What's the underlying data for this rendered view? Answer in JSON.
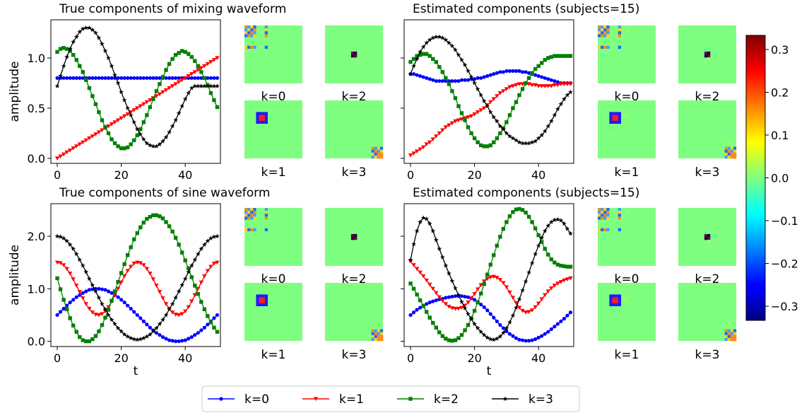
{
  "figure": {
    "legend_placement": "bottom-center",
    "legend": [
      {
        "label": "k=0",
        "color": "#0000ff",
        "marker": "circle"
      },
      {
        "label": "k=1",
        "color": "#ff0000",
        "marker": "triangle-down"
      },
      {
        "label": "k=2",
        "color": "#008000",
        "marker": "square"
      },
      {
        "label": "k=3",
        "color": "#000000",
        "marker": "star"
      }
    ],
    "colorbar": {
      "colormap": "jet",
      "range": [
        -0.333,
        0.333
      ],
      "ticks": [
        0.3,
        0.2,
        0.1,
        0.0,
        -0.1,
        -0.2,
        -0.3
      ],
      "tick_labels": [
        "0.3",
        "0.2",
        "0.1",
        "0.0",
        "−0.1",
        "−0.2",
        "−0.3"
      ]
    },
    "matrix_labels": [
      "k=0",
      "k=2",
      "k=1",
      "k=3"
    ]
  },
  "chart_data": [
    {
      "type": "line",
      "title": "True components of mixing waveform",
      "xlabel": "",
      "ylabel": "amplitude",
      "xlim": [
        -2,
        51
      ],
      "ylim": [
        -0.05,
        1.38
      ],
      "xticks": [
        0,
        20,
        40
      ],
      "xtick_labels": [
        "0",
        "20",
        "40"
      ],
      "yticks": [
        0.0,
        0.5,
        1.0
      ],
      "ytick_labels": [
        "0.0",
        "0.5",
        "1.0"
      ],
      "x_start": 0,
      "x_step": 1,
      "series": [
        {
          "name": "k=0",
          "values": [
            0.8,
            0.8,
            0.8,
            0.8,
            0.8,
            0.8,
            0.8,
            0.8,
            0.8,
            0.8,
            0.8,
            0.8,
            0.8,
            0.8,
            0.8,
            0.8,
            0.8,
            0.8,
            0.8,
            0.8,
            0.8,
            0.8,
            0.8,
            0.8,
            0.8,
            0.8,
            0.8,
            0.8,
            0.8,
            0.8,
            0.8,
            0.8,
            0.8,
            0.8,
            0.8,
            0.8,
            0.8,
            0.8,
            0.8,
            0.8,
            0.8,
            0.8,
            0.8,
            0.8,
            0.8,
            0.8,
            0.8,
            0.8,
            0.8,
            0.8,
            0.8
          ]
        },
        {
          "name": "k=1",
          "values": [
            0.0,
            0.02,
            0.04,
            0.06,
            0.08,
            0.1,
            0.12,
            0.14,
            0.16,
            0.18,
            0.2,
            0.22,
            0.24,
            0.26,
            0.28,
            0.3,
            0.32,
            0.34,
            0.36,
            0.38,
            0.4,
            0.42,
            0.44,
            0.46,
            0.48,
            0.5,
            0.52,
            0.54,
            0.56,
            0.58,
            0.6,
            0.62,
            0.64,
            0.66,
            0.68,
            0.7,
            0.72,
            0.74,
            0.76,
            0.78,
            0.8,
            0.82,
            0.84,
            0.86,
            0.88,
            0.9,
            0.92,
            0.94,
            0.96,
            0.98,
            1.0
          ]
        },
        {
          "name": "k=2",
          "values": [
            1.06,
            1.09,
            1.1,
            1.09,
            1.07,
            1.03,
            0.98,
            0.92,
            0.86,
            0.78,
            0.7,
            0.62,
            0.54,
            0.46,
            0.38,
            0.31,
            0.25,
            0.19,
            0.15,
            0.12,
            0.1,
            0.1,
            0.11,
            0.14,
            0.18,
            0.23,
            0.29,
            0.36,
            0.43,
            0.51,
            0.59,
            0.67,
            0.74,
            0.81,
            0.88,
            0.94,
            0.99,
            1.03,
            1.05,
            1.07,
            1.06,
            1.04,
            1.01,
            0.97,
            0.92,
            0.86,
            0.8,
            0.73,
            0.65,
            0.58,
            0.51
          ]
        },
        {
          "name": "k=3",
          "values": [
            0.72,
            0.82,
            0.92,
            1.01,
            1.09,
            1.16,
            1.21,
            1.26,
            1.29,
            1.3,
            1.3,
            1.28,
            1.25,
            1.2,
            1.14,
            1.07,
            1.0,
            0.92,
            0.83,
            0.75,
            0.66,
            0.58,
            0.5,
            0.43,
            0.36,
            0.29,
            0.24,
            0.19,
            0.15,
            0.13,
            0.12,
            0.12,
            0.14,
            0.17,
            0.21,
            0.26,
            0.32,
            0.38,
            0.45,
            0.52,
            0.59,
            0.65,
            0.7,
            0.72,
            0.72,
            0.72,
            0.72,
            0.72,
            0.72,
            0.72,
            0.72
          ]
        }
      ]
    },
    {
      "type": "line",
      "title": "Estimated components (subjects=15)",
      "xlabel": "",
      "ylabel": "",
      "xlim": [
        -2,
        51
      ],
      "ylim": [
        -0.05,
        1.38
      ],
      "xticks": [
        0,
        20,
        40
      ],
      "xtick_labels": [
        "0",
        "20",
        "40"
      ],
      "yticks": [
        0.0,
        0.5,
        1.0
      ],
      "ytick_labels": [
        "",
        "",
        ""
      ],
      "x_start": 0,
      "x_step": 1,
      "series": [
        {
          "name": "k=0",
          "values": [
            0.84,
            0.84,
            0.83,
            0.82,
            0.81,
            0.8,
            0.79,
            0.78,
            0.77,
            0.77,
            0.77,
            0.77,
            0.77,
            0.77,
            0.77,
            0.77,
            0.78,
            0.78,
            0.78,
            0.79,
            0.79,
            0.8,
            0.8,
            0.81,
            0.82,
            0.83,
            0.84,
            0.85,
            0.86,
            0.86,
            0.87,
            0.87,
            0.87,
            0.87,
            0.87,
            0.86,
            0.86,
            0.85,
            0.84,
            0.83,
            0.82,
            0.81,
            0.8,
            0.79,
            0.78,
            0.77,
            0.76,
            0.75,
            0.75,
            0.75,
            0.75
          ]
        },
        {
          "name": "k=1",
          "values": [
            0.03,
            0.05,
            0.07,
            0.09,
            0.11,
            0.14,
            0.16,
            0.19,
            0.22,
            0.25,
            0.28,
            0.31,
            0.33,
            0.35,
            0.37,
            0.38,
            0.39,
            0.4,
            0.41,
            0.42,
            0.44,
            0.46,
            0.48,
            0.5,
            0.53,
            0.56,
            0.59,
            0.62,
            0.65,
            0.67,
            0.69,
            0.71,
            0.72,
            0.73,
            0.74,
            0.74,
            0.74,
            0.74,
            0.73,
            0.73,
            0.72,
            0.72,
            0.72,
            0.72,
            0.72,
            0.73,
            0.73,
            0.74,
            0.74,
            0.74,
            0.74
          ]
        },
        {
          "name": "k=2",
          "values": [
            0.96,
            0.99,
            1.02,
            1.03,
            1.04,
            1.04,
            1.02,
            0.99,
            0.96,
            0.91,
            0.86,
            0.8,
            0.74,
            0.67,
            0.6,
            0.52,
            0.45,
            0.38,
            0.31,
            0.25,
            0.2,
            0.16,
            0.13,
            0.12,
            0.12,
            0.13,
            0.16,
            0.2,
            0.25,
            0.3,
            0.36,
            0.43,
            0.5,
            0.56,
            0.63,
            0.69,
            0.75,
            0.8,
            0.85,
            0.89,
            0.92,
            0.95,
            0.98,
            1.0,
            1.01,
            1.02,
            1.02,
            1.02,
            1.02,
            1.02,
            1.02
          ]
        },
        {
          "name": "k=3",
          "values": [
            0.84,
            0.92,
            0.99,
            1.06,
            1.11,
            1.15,
            1.18,
            1.2,
            1.21,
            1.21,
            1.2,
            1.18,
            1.15,
            1.12,
            1.08,
            1.03,
            0.98,
            0.93,
            0.87,
            0.81,
            0.75,
            0.69,
            0.63,
            0.57,
            0.52,
            0.46,
            0.41,
            0.37,
            0.32,
            0.29,
            0.25,
            0.22,
            0.2,
            0.18,
            0.16,
            0.15,
            0.15,
            0.15,
            0.16,
            0.17,
            0.2,
            0.23,
            0.27,
            0.32,
            0.37,
            0.43,
            0.49,
            0.54,
            0.59,
            0.63,
            0.66
          ]
        }
      ]
    },
    {
      "type": "line",
      "title": "True components of sine waveform",
      "xlabel": "t",
      "ylabel": "amplitude",
      "xlim": [
        -2,
        51
      ],
      "ylim": [
        -0.1,
        2.62
      ],
      "xticks": [
        0,
        20,
        40
      ],
      "xtick_labels": [
        "0",
        "20",
        "40"
      ],
      "yticks": [
        0.0,
        1.0,
        2.0
      ],
      "ytick_labels": [
        "0.0",
        "1.0",
        "2.0"
      ],
      "x_start": 0,
      "x_step": 1,
      "series": [
        {
          "name": "k=0",
          "values": [
            0.5,
            0.56,
            0.62,
            0.68,
            0.74,
            0.79,
            0.84,
            0.88,
            0.92,
            0.95,
            0.98,
            0.99,
            1.0,
            1.0,
            0.99,
            0.98,
            0.95,
            0.92,
            0.88,
            0.84,
            0.79,
            0.74,
            0.68,
            0.62,
            0.56,
            0.5,
            0.44,
            0.38,
            0.32,
            0.26,
            0.21,
            0.16,
            0.12,
            0.08,
            0.05,
            0.02,
            0.01,
            0.0,
            0.0,
            0.01,
            0.02,
            0.05,
            0.08,
            0.12,
            0.16,
            0.21,
            0.26,
            0.32,
            0.38,
            0.44,
            0.5
          ]
        },
        {
          "name": "k=1",
          "values": [
            1.5,
            1.49,
            1.45,
            1.38,
            1.29,
            1.18,
            1.06,
            0.94,
            0.82,
            0.71,
            0.62,
            0.55,
            0.51,
            0.5,
            0.52,
            0.57,
            0.65,
            0.76,
            0.88,
            1.0,
            1.12,
            1.24,
            1.34,
            1.42,
            1.48,
            1.5,
            1.49,
            1.45,
            1.38,
            1.29,
            1.18,
            1.06,
            0.94,
            0.82,
            0.71,
            0.62,
            0.55,
            0.51,
            0.5,
            0.52,
            0.57,
            0.65,
            0.76,
            0.88,
            1.0,
            1.12,
            1.24,
            1.34,
            1.42,
            1.48,
            1.5
          ]
        },
        {
          "name": "k=2",
          "values": [
            1.2,
            0.99,
            0.79,
            0.61,
            0.44,
            0.3,
            0.18,
            0.08,
            0.02,
            0.0,
            0.0,
            0.04,
            0.1,
            0.19,
            0.31,
            0.45,
            0.6,
            0.77,
            0.95,
            1.13,
            1.3,
            1.47,
            1.64,
            1.79,
            1.94,
            2.06,
            2.17,
            2.26,
            2.33,
            2.37,
            2.4,
            2.4,
            2.38,
            2.34,
            2.27,
            2.19,
            2.09,
            1.97,
            1.84,
            1.69,
            1.54,
            1.39,
            1.22,
            1.06,
            0.9,
            0.75,
            0.61,
            0.48,
            0.36,
            0.26,
            0.18
          ]
        },
        {
          "name": "k=3",
          "values": [
            2.0,
            1.99,
            1.96,
            1.91,
            1.84,
            1.76,
            1.66,
            1.55,
            1.44,
            1.32,
            1.19,
            1.07,
            0.95,
            0.83,
            0.71,
            0.61,
            0.5,
            0.41,
            0.33,
            0.25,
            0.19,
            0.13,
            0.09,
            0.06,
            0.04,
            0.03,
            0.04,
            0.06,
            0.09,
            0.13,
            0.19,
            0.25,
            0.33,
            0.41,
            0.5,
            0.61,
            0.71,
            0.83,
            0.95,
            1.07,
            1.19,
            1.32,
            1.44,
            1.55,
            1.66,
            1.76,
            1.84,
            1.91,
            1.96,
            1.99,
            2.0
          ]
        }
      ]
    },
    {
      "type": "line",
      "title": "Estimated components (subjects=15)",
      "xlabel": "t",
      "ylabel": "",
      "xlim": [
        -2,
        51
      ],
      "ylim": [
        -0.1,
        2.62
      ],
      "xticks": [
        0,
        20,
        40
      ],
      "xtick_labels": [
        "0",
        "20",
        "40"
      ],
      "yticks": [
        0.0,
        1.0,
        2.0
      ],
      "ytick_labels": [
        "",
        "",
        ""
      ],
      "x_start": 0,
      "x_step": 1,
      "series": [
        {
          "name": "k=0",
          "values": [
            0.5,
            0.55,
            0.6,
            0.64,
            0.68,
            0.71,
            0.74,
            0.76,
            0.78,
            0.8,
            0.81,
            0.83,
            0.84,
            0.85,
            0.86,
            0.86,
            0.86,
            0.85,
            0.84,
            0.82,
            0.79,
            0.75,
            0.7,
            0.65,
            0.59,
            0.52,
            0.45,
            0.38,
            0.31,
            0.25,
            0.19,
            0.14,
            0.1,
            0.06,
            0.03,
            0.02,
            0.01,
            0.01,
            0.02,
            0.04,
            0.07,
            0.1,
            0.14,
            0.18,
            0.23,
            0.28,
            0.33,
            0.38,
            0.43,
            0.49,
            0.55
          ]
        },
        {
          "name": "k=1",
          "values": [
            1.52,
            1.45,
            1.38,
            1.31,
            1.24,
            1.16,
            1.08,
            1.0,
            0.92,
            0.84,
            0.77,
            0.71,
            0.66,
            0.63,
            0.62,
            0.62,
            0.64,
            0.68,
            0.74,
            0.82,
            0.9,
            0.99,
            1.07,
            1.14,
            1.19,
            1.22,
            1.23,
            1.21,
            1.17,
            1.11,
            1.03,
            0.93,
            0.83,
            0.73,
            0.64,
            0.58,
            0.55,
            0.56,
            0.59,
            0.65,
            0.72,
            0.8,
            0.88,
            0.95,
            1.01,
            1.06,
            1.1,
            1.13,
            1.16,
            1.18,
            1.2
          ]
        },
        {
          "name": "k=2",
          "values": [
            1.1,
            1.0,
            0.89,
            0.78,
            0.67,
            0.56,
            0.45,
            0.35,
            0.26,
            0.17,
            0.1,
            0.05,
            0.02,
            0.01,
            0.02,
            0.06,
            0.12,
            0.21,
            0.31,
            0.44,
            0.58,
            0.74,
            0.91,
            1.09,
            1.27,
            1.46,
            1.64,
            1.82,
            1.99,
            2.14,
            2.27,
            2.38,
            2.46,
            2.51,
            2.52,
            2.5,
            2.45,
            2.37,
            2.27,
            2.15,
            2.02,
            1.89,
            1.76,
            1.65,
            1.56,
            1.5,
            1.46,
            1.44,
            1.43,
            1.42,
            1.42
          ]
        },
        {
          "name": "k=3",
          "values": [
            1.55,
            1.85,
            2.1,
            2.27,
            2.35,
            2.33,
            2.24,
            2.1,
            1.93,
            1.76,
            1.6,
            1.44,
            1.29,
            1.15,
            1.01,
            0.88,
            0.75,
            0.63,
            0.52,
            0.42,
            0.33,
            0.25,
            0.18,
            0.12,
            0.07,
            0.04,
            0.03,
            0.05,
            0.09,
            0.16,
            0.25,
            0.36,
            0.49,
            0.64,
            0.8,
            0.97,
            1.14,
            1.31,
            1.49,
            1.66,
            1.82,
            1.97,
            2.1,
            2.2,
            2.27,
            2.31,
            2.32,
            2.3,
            2.24,
            2.14,
            2.05
          ]
        }
      ]
    }
  ]
}
